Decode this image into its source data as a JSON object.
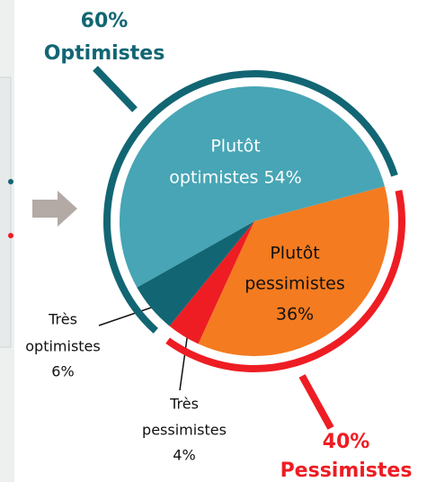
{
  "chart_data": {
    "type": "pie",
    "categories": [
      "Plutôt pessimistes",
      "Très pessimistes",
      "Très optimistes",
      "Plutôt optimistes"
    ],
    "values": [
      36,
      4,
      6,
      54
    ],
    "colors": [
      "#f47b20",
      "#ee1d23",
      "#126673",
      "#47a5b5"
    ],
    "slice_labels": [
      [
        "Plutôt",
        "pessimistes",
        "36%"
      ],
      [
        "Très",
        "pessimistes",
        "4%"
      ],
      [
        "Très",
        "optimistes",
        "6%"
      ],
      [
        "Plutôt",
        "optimistes 54%"
      ]
    ],
    "groups": [
      {
        "name": "Pessimistes",
        "value": 40,
        "value_label": "40%",
        "color": "#ee1d23"
      },
      {
        "name": "Optimistes",
        "value": 60,
        "value_label": "60%",
        "color": "#126673"
      }
    ]
  }
}
